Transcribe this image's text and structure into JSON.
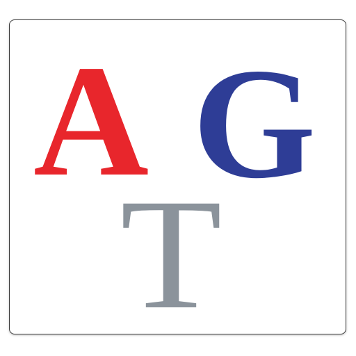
{
  "logo": {
    "letters": [
      {
        "text": "A",
        "color": "#e8262c"
      },
      {
        "text": "G",
        "color": "#2e3d96"
      },
      {
        "text": "T",
        "color": "#8b939b"
      }
    ]
  }
}
